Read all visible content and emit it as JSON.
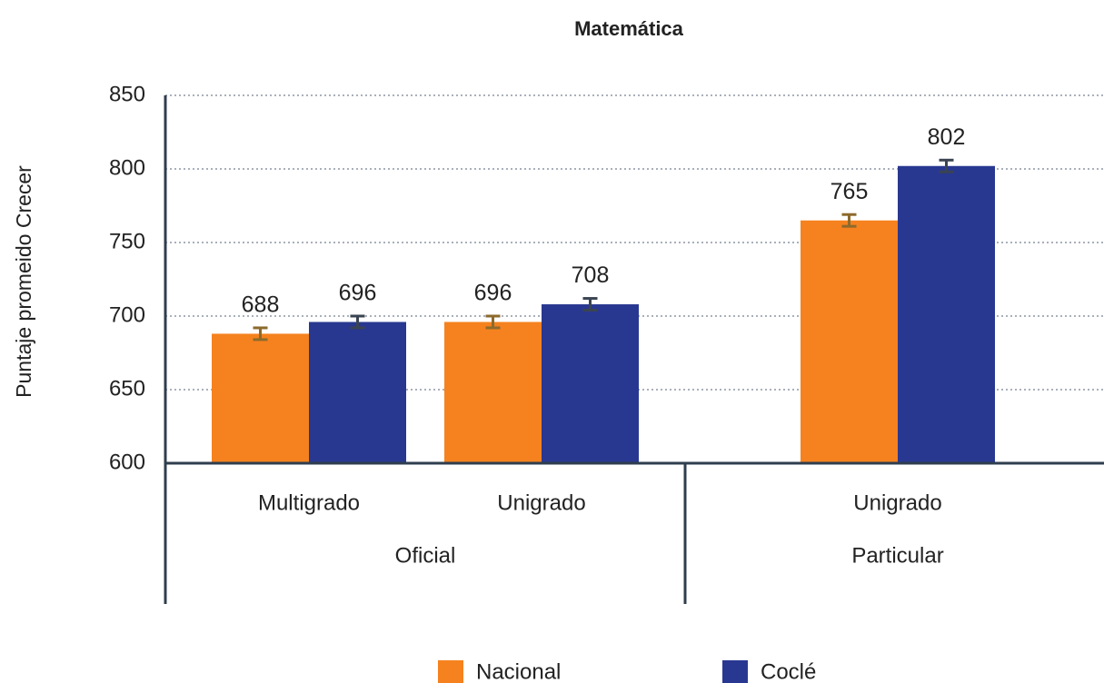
{
  "chart_data": {
    "type": "bar",
    "title": "Matemática",
    "ylabel": "Puntaje promeido Crecer",
    "groups": [
      {
        "label": "Oficial",
        "categories": [
          "Multigrado",
          "Unigrado"
        ]
      },
      {
        "label": "Particular",
        "categories": [
          "Unigrado"
        ]
      }
    ],
    "series": [
      {
        "name": "Nacional",
        "color": "#f5821f",
        "error_color": "#8c6a2c",
        "values": [
          688,
          696,
          765
        ],
        "errors": [
          4,
          4,
          4
        ]
      },
      {
        "name": "Coclé",
        "color": "#283891",
        "error_color": "#3a4452",
        "values": [
          696,
          708,
          802
        ],
        "errors": [
          4,
          4,
          4
        ]
      }
    ],
    "ylim": [
      600,
      850
    ],
    "yticks": [
      600,
      650,
      700,
      750,
      800,
      850
    ],
    "grid": true,
    "legend": "bottom"
  }
}
